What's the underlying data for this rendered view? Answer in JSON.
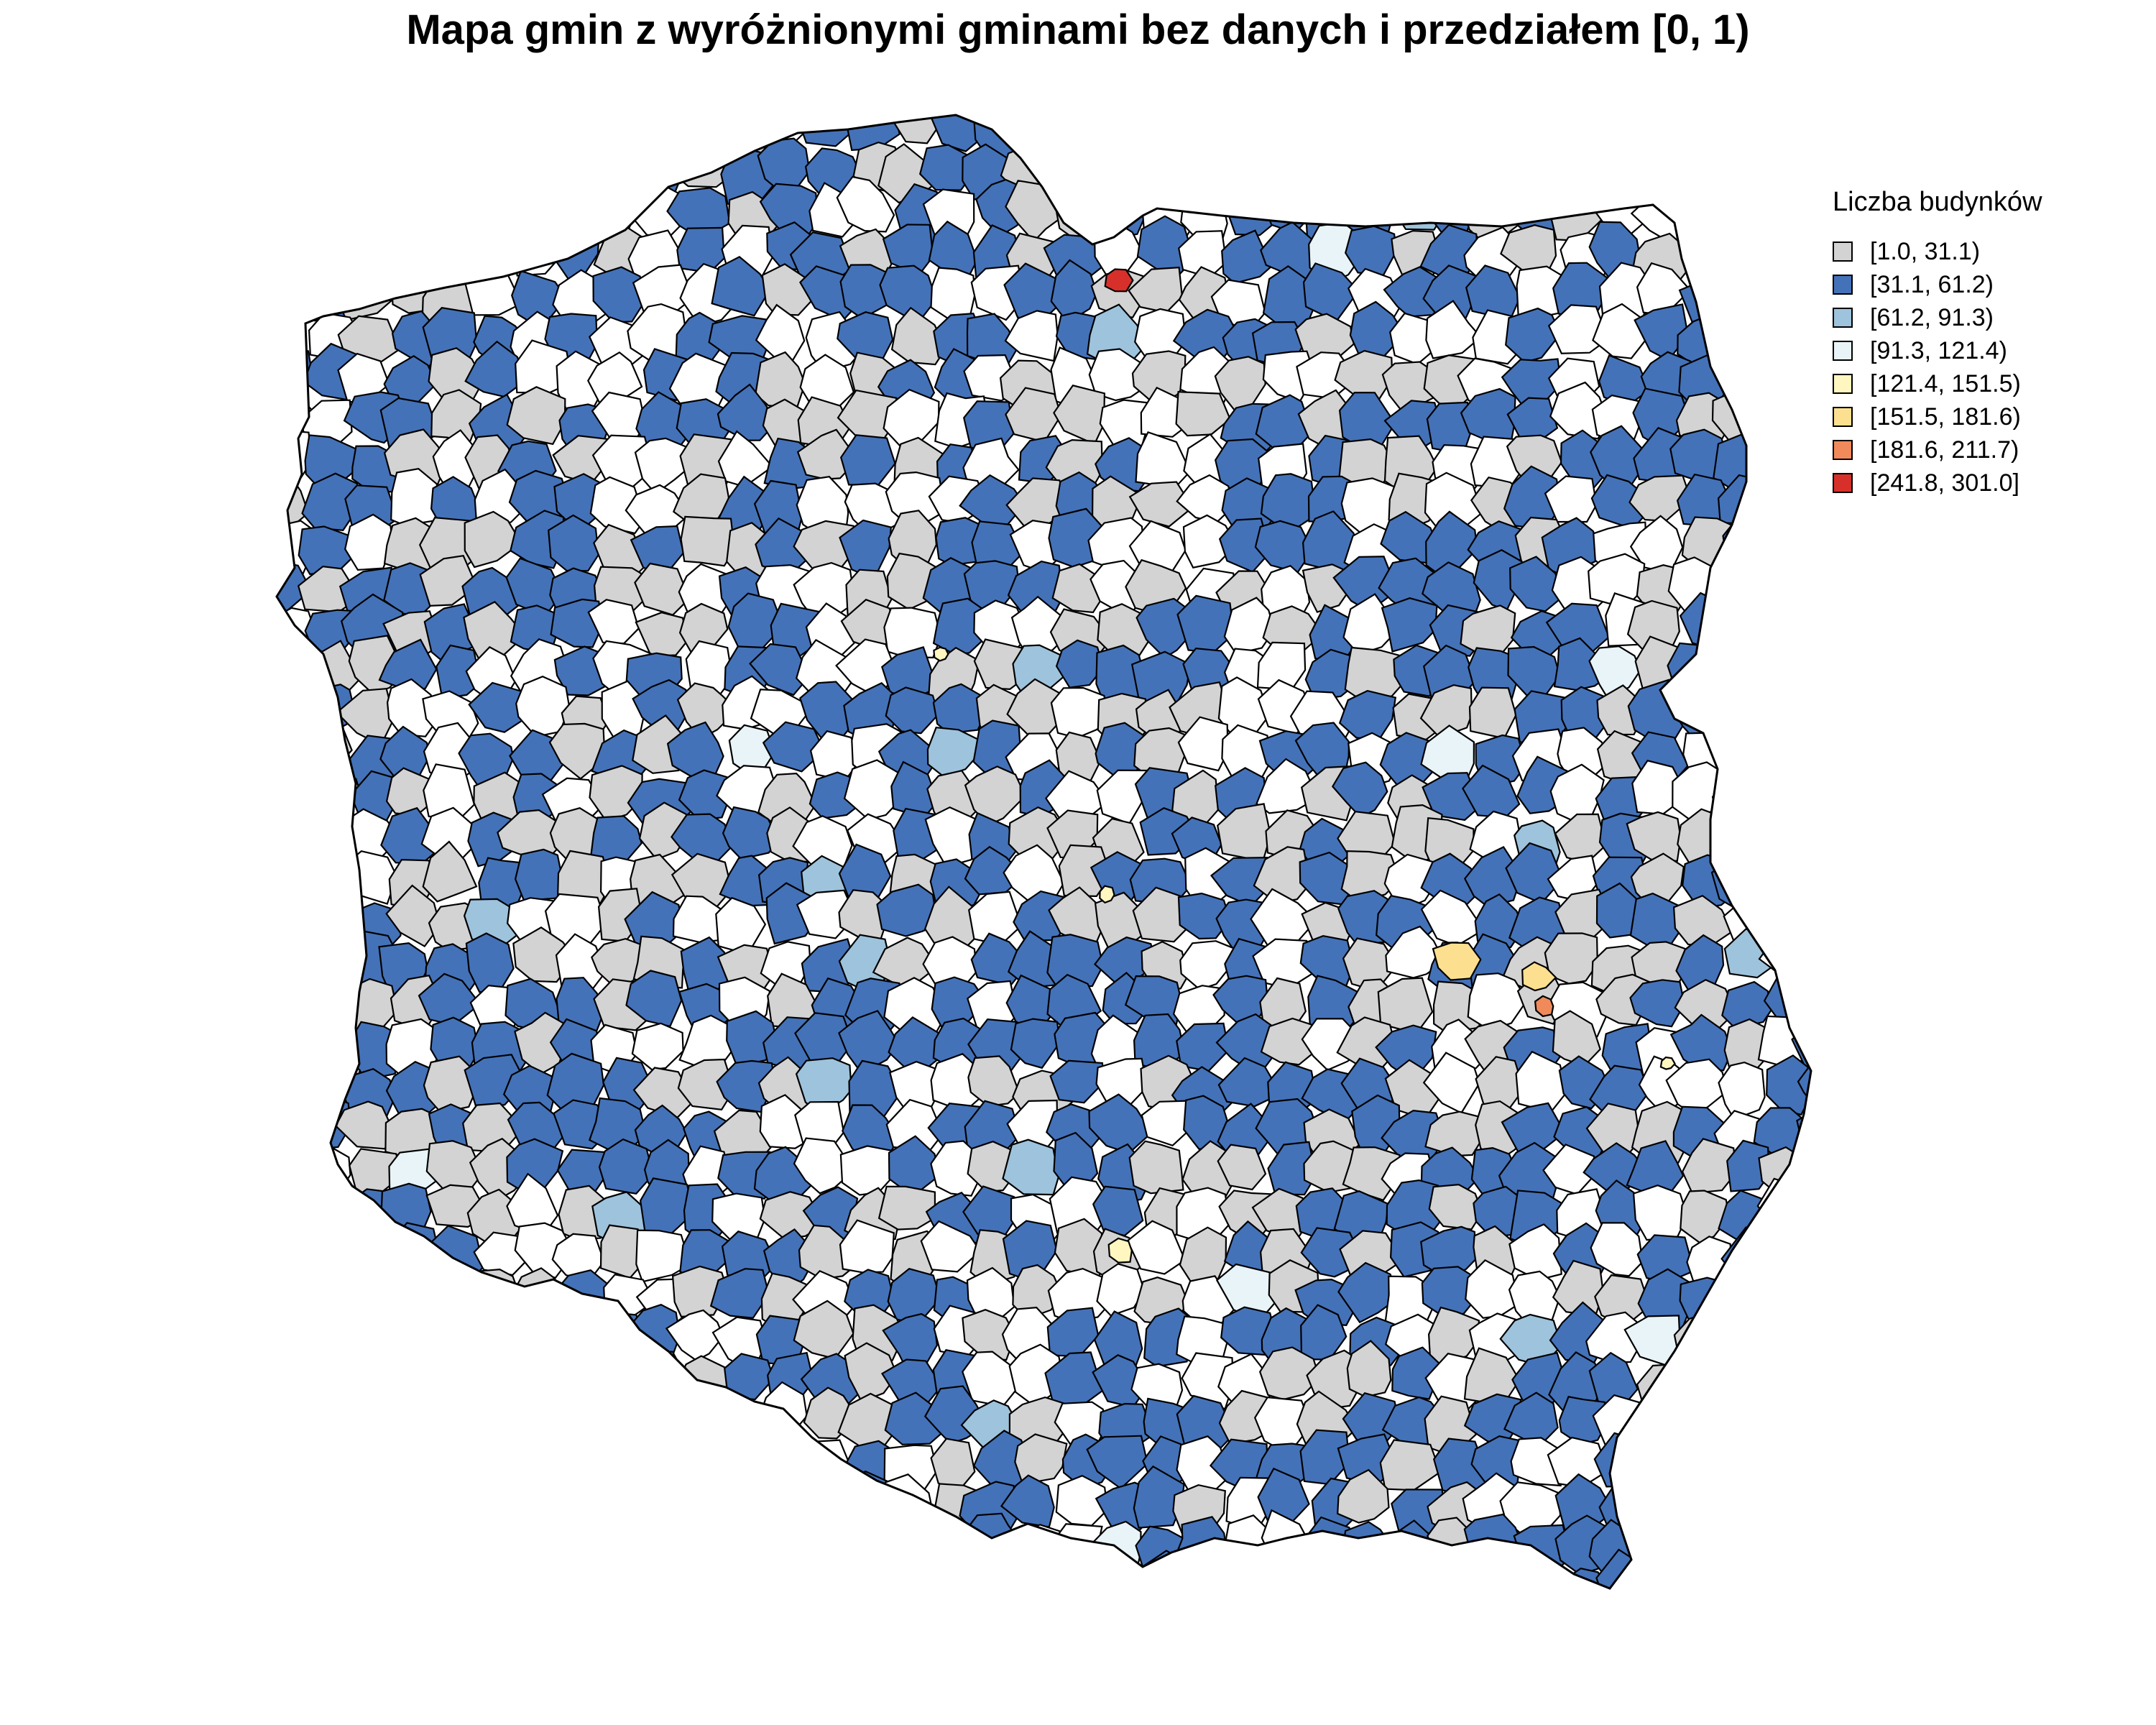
{
  "title": "Mapa gmin z wyróżnionymi gminami bez danych i przedziałem [0, 1)",
  "legend": {
    "title": "Liczba budynków",
    "items": [
      {
        "label": "[1.0, 31.1)",
        "color": "#d3d3d3"
      },
      {
        "label": "[31.1, 61.2)",
        "color": "#4472b8"
      },
      {
        "label": "[61.2, 91.3)",
        "color": "#9ec3dc"
      },
      {
        "label": "[91.3, 121.4)",
        "color": "#e8f4f8"
      },
      {
        "label": "[121.4, 151.5)",
        "color": "#fff6c0"
      },
      {
        "label": "[151.5, 181.6)",
        "color": "#fde08f"
      },
      {
        "label": "[181.6, 211.7)",
        "color": "#f08a5a"
      },
      {
        "label": "[241.8, 301.0]",
        "color": "#d7302a"
      }
    ]
  },
  "map": {
    "region": "Poland",
    "units": "gminy",
    "no_data_color": "#ffffff",
    "border_color": "#000000"
  }
}
